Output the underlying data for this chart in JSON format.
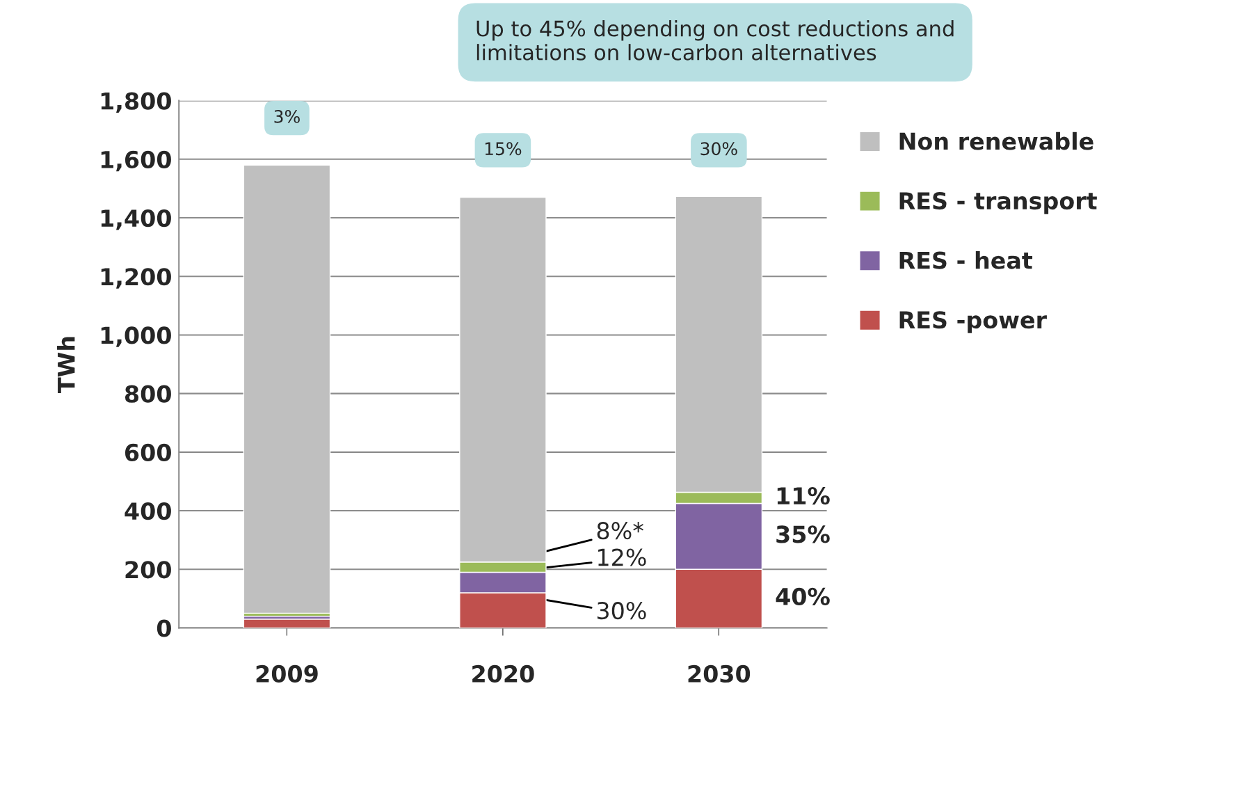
{
  "chart_data": {
    "type": "bar",
    "stacked": true,
    "ylabel": "TWh",
    "categories": [
      "2009",
      "2020",
      "2030"
    ],
    "series": [
      {
        "name": "RES -power",
        "color": "#c0504d",
        "values": [
          30,
          120,
          200
        ]
      },
      {
        "name": "RES - heat",
        "color": "#8064a2",
        "values": [
          10,
          70,
          225
        ]
      },
      {
        "name": "RES - transport",
        "color": "#9bbb59",
        "values": [
          10,
          35,
          38
        ]
      },
      {
        "name": "Non renewable",
        "color": "#bfbfbf",
        "values": [
          1530,
          1245,
          1010
        ]
      }
    ],
    "ylim": [
      0,
      1800
    ],
    "yticks": [
      {
        "value": 0,
        "label": "0"
      },
      {
        "value": 200,
        "label": "200"
      },
      {
        "value": 400,
        "label": "400"
      },
      {
        "value": 600,
        "label": "600"
      },
      {
        "value": 800,
        "label": "800"
      },
      {
        "value": 1000,
        "label": "1,000"
      },
      {
        "value": 1200,
        "label": "1,200"
      },
      {
        "value": 1400,
        "label": "1,400"
      },
      {
        "value": 1600,
        "label": "1,600"
      },
      {
        "value": 1800,
        "label": "1,800"
      }
    ],
    "grid": "y",
    "legend": "right",
    "annotations": [
      "Up to 45% depending on cost reductions and limitations on low-carbon alternatives",
      {
        "text": "3%",
        "x": "2009",
        "y": 1580
      },
      {
        "text": "15%",
        "x": "2020",
        "y": 1470
      },
      {
        "text": "30%",
        "x": "2030",
        "y": 1470
      },
      {
        "text": "8%*",
        "x": "2020",
        "y": 225
      },
      {
        "text": "12%",
        "x": "2020",
        "y": 190
      },
      {
        "text": "30%",
        "x": "2020",
        "y": 120
      },
      "11%",
      "35%",
      "40%"
    ]
  }
}
